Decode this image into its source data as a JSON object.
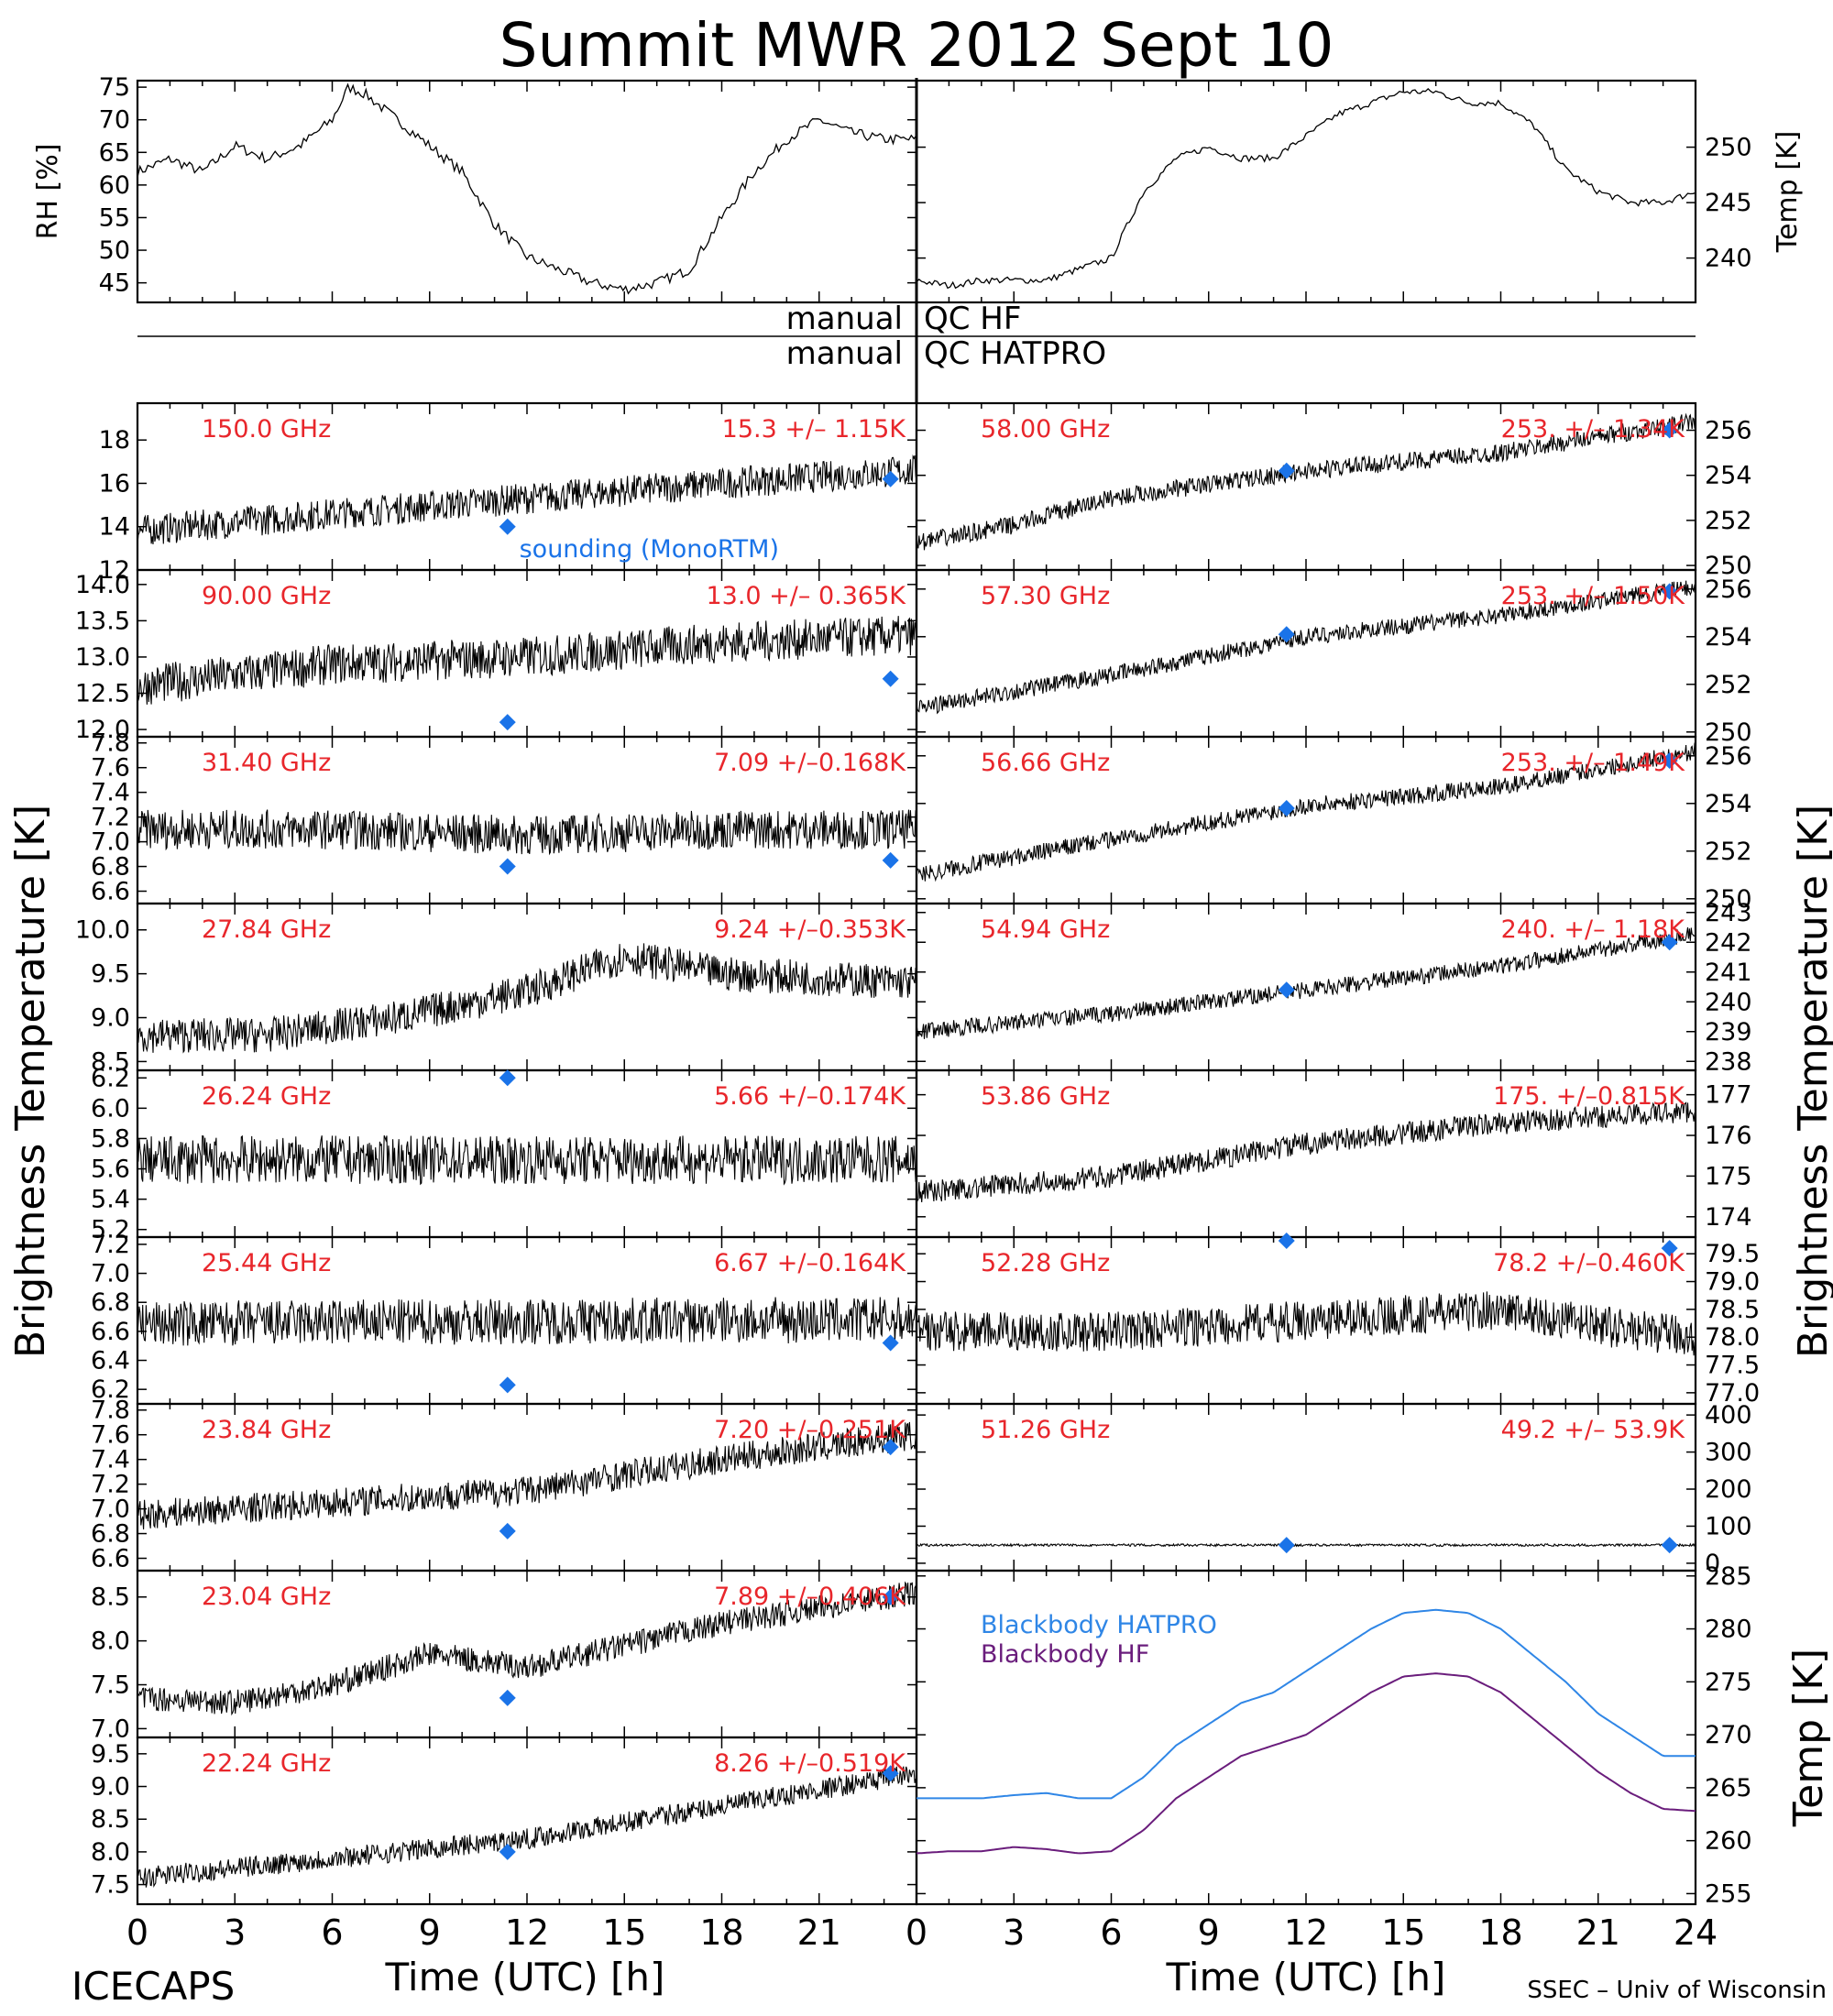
{
  "title": "Summit MWR 2012 Sept 10",
  "footer": {
    "left": "ICECAPS",
    "right": "SSEC – Univ of Wisconsin"
  },
  "qc": {
    "hf_left": "manual",
    "hf_right": "QC HF",
    "hat_left": "manual",
    "hat_right": "QC HATPRO"
  },
  "y_axis_label_left": "Brightness Temperature [K]",
  "y_axis_label_right": "Brightness Temperature [K]",
  "colors": {
    "series": "#000000",
    "sounding": "#1a73e8",
    "label": "#e8262b",
    "bb_hatpro": "#2f86e6",
    "bb_hf": "#6a1d7c"
  },
  "x_axis": {
    "label": "Time (UTC) [h]",
    "left_ticks": [
      "0",
      "3",
      "6",
      "9",
      "12",
      "15",
      "18",
      "21"
    ],
    "right_ticks": [
      "0",
      "3",
      "6",
      "9",
      "12",
      "15",
      "18",
      "21",
      "24"
    ],
    "range": [
      0,
      24
    ]
  },
  "chart_data": [
    {
      "type": "line",
      "id": "rh",
      "ylabel": "RH [%]",
      "ylim": [
        42,
        76
      ],
      "yticks": [
        "45",
        "50",
        "55",
        "60",
        "65",
        "70",
        "75"
      ],
      "xlim": [
        0,
        24
      ],
      "series": [
        {
          "x": [
            0,
            1,
            2,
            3,
            4,
            5,
            6,
            6.5,
            7,
            8,
            9,
            10,
            11,
            12,
            13,
            14,
            15,
            16,
            17,
            18,
            19,
            20,
            21,
            22,
            23,
            24
          ],
          "y": [
            62,
            64,
            62,
            66,
            64,
            66,
            70,
            75,
            74,
            70,
            66,
            62,
            54,
            49,
            47,
            45,
            44,
            45,
            47,
            55,
            62,
            67,
            70,
            68,
            67,
            67
          ]
        }
      ]
    },
    {
      "type": "line",
      "id": "temp",
      "ylabel": "Temp [K]",
      "ylim": [
        236,
        256
      ],
      "yticks": [
        "240",
        "245",
        "250"
      ],
      "xlim": [
        0,
        24
      ],
      "series": [
        {
          "x": [
            0,
            1,
            2,
            3,
            4,
            5,
            6,
            7,
            8,
            9,
            10,
            11,
            12,
            13,
            14,
            15,
            16,
            17,
            18,
            19,
            20,
            21,
            22,
            23,
            24
          ],
          "y": [
            238,
            237.5,
            238,
            238,
            238,
            239,
            240,
            246,
            249,
            250,
            249,
            249,
            251,
            253,
            254,
            255,
            255,
            254,
            254,
            252,
            248,
            246,
            245,
            245,
            246
          ]
        }
      ]
    },
    {
      "type": "scatter",
      "panel": "left",
      "row": 0,
      "freq": "150.0 GHz",
      "stat": "15.3 +/– 1.15K",
      "ylim": [
        12,
        19.7
      ],
      "yticks": [
        "12",
        "14",
        "16",
        "18"
      ],
      "trend": {
        "x": [
          0,
          6,
          12,
          18,
          24
        ],
        "y": [
          13.8,
          14.6,
          15.3,
          16,
          16.6
        ]
      },
      "noise": 0.9,
      "sounding_label": "sounding (MonoRTM)",
      "sounding": {
        "x": [
          11.4,
          23.2
        ],
        "y": [
          14,
          16.2
        ]
      }
    },
    {
      "type": "scatter",
      "panel": "left",
      "row": 1,
      "freq": "90.00 GHz",
      "stat": "13.0 +/– 0.365K",
      "ylim": [
        11.9,
        14.2
      ],
      "yticks": [
        "12.0",
        "12.5",
        "13.0",
        "13.5",
        "14.0"
      ],
      "trend": {
        "x": [
          0,
          6,
          12,
          18,
          24
        ],
        "y": [
          12.6,
          12.9,
          13.0,
          13.2,
          13.3
        ]
      },
      "noise": 0.35,
      "sounding": {
        "x": [
          11.4,
          23.2
        ],
        "y": [
          12.1,
          12.7
        ]
      }
    },
    {
      "type": "scatter",
      "panel": "left",
      "row": 2,
      "freq": "31.40 GHz",
      "stat": "7.09 +/–0.168K",
      "ylim": [
        6.5,
        7.85
      ],
      "yticks": [
        "6.6",
        "6.8",
        "7.0",
        "7.2",
        "7.4",
        "7.6",
        "7.8"
      ],
      "trend": {
        "x": [
          0,
          6,
          12,
          18,
          24
        ],
        "y": [
          7.1,
          7.1,
          7.05,
          7.1,
          7.1
        ]
      },
      "noise": 0.2,
      "sounding": {
        "x": [
          11.4,
          23.2
        ],
        "y": [
          6.8,
          6.85
        ]
      }
    },
    {
      "type": "scatter",
      "panel": "left",
      "row": 3,
      "freq": "27.84 GHz",
      "stat": "9.24 +/–0.353K",
      "ylim": [
        8.4,
        10.3
      ],
      "yticks": [
        "8.5",
        "9.0",
        "9.5",
        "10.0"
      ],
      "trend": {
        "x": [
          0,
          4,
          8,
          12,
          15,
          18,
          24
        ],
        "y": [
          8.8,
          8.8,
          9.0,
          9.3,
          9.7,
          9.5,
          9.4
        ]
      },
      "noise": 0.25,
      "sounding": {
        "x": [],
        "y": []
      }
    },
    {
      "type": "scatter",
      "panel": "left",
      "row": 4,
      "freq": "26.24 GHz",
      "stat": "5.66 +/–0.174K",
      "ylim": [
        5.15,
        6.25
      ],
      "yticks": [
        "5.2",
        "5.4",
        "5.6",
        "5.8",
        "6.0",
        "6.2"
      ],
      "trend": {
        "x": [
          0,
          12,
          24
        ],
        "y": [
          5.66,
          5.66,
          5.66
        ]
      },
      "noise": 0.2,
      "sounding": {
        "x": [
          11.4
        ],
        "y": [
          6.2
        ]
      }
    },
    {
      "type": "scatter",
      "panel": "left",
      "row": 5,
      "freq": "25.44 GHz",
      "stat": "6.67 +/–0.164K",
      "ylim": [
        6.1,
        7.25
      ],
      "yticks": [
        "6.2",
        "6.4",
        "6.6",
        "6.8",
        "7.0",
        "7.2"
      ],
      "trend": {
        "x": [
          0,
          12,
          24
        ],
        "y": [
          6.65,
          6.67,
          6.68
        ]
      },
      "noise": 0.2,
      "sounding": {
        "x": [
          11.4,
          23.2
        ],
        "y": [
          6.23,
          6.52
        ]
      }
    },
    {
      "type": "scatter",
      "panel": "left",
      "row": 6,
      "freq": "23.84 GHz",
      "stat": "7.20 +/–0.251K",
      "ylim": [
        6.5,
        7.85
      ],
      "yticks": [
        "6.6",
        "6.8",
        "7.0",
        "7.2",
        "7.4",
        "7.6",
        "7.8"
      ],
      "trend": {
        "x": [
          0,
          6,
          12,
          18,
          24
        ],
        "y": [
          6.95,
          7.05,
          7.15,
          7.4,
          7.6
        ]
      },
      "noise": 0.15,
      "sounding": {
        "x": [
          11.4,
          23.2
        ],
        "y": [
          6.82,
          7.5
        ]
      }
    },
    {
      "type": "scatter",
      "panel": "left",
      "row": 7,
      "freq": "23.04 GHz",
      "stat": "7.89 +/–0.406K",
      "ylim": [
        6.9,
        8.8
      ],
      "yticks": [
        "7.0",
        "7.5",
        "8.0",
        "8.5"
      ],
      "trend": {
        "x": [
          0,
          3,
          6,
          9,
          12,
          18,
          24
        ],
        "y": [
          7.35,
          7.3,
          7.5,
          7.85,
          7.7,
          8.2,
          8.55
        ]
      },
      "noise": 0.18,
      "sounding": {
        "x": [
          11.4,
          23.2
        ],
        "y": [
          7.35,
          8.5
        ]
      }
    },
    {
      "type": "scatter",
      "panel": "left",
      "row": 8,
      "freq": "22.24 GHz",
      "stat": "8.26 +/–0.519K",
      "ylim": [
        7.2,
        9.75
      ],
      "yticks": [
        "7.5",
        "8.0",
        "8.5",
        "9.0",
        "9.5"
      ],
      "trend": {
        "x": [
          0,
          6,
          12,
          18,
          24
        ],
        "y": [
          7.6,
          7.9,
          8.2,
          8.7,
          9.2
        ]
      },
      "noise": 0.2,
      "sounding": {
        "x": [
          11.4,
          23.2
        ],
        "y": [
          8.0,
          9.2
        ]
      }
    },
    {
      "type": "scatter",
      "panel": "right",
      "row": 0,
      "freq": "58.00 GHz",
      "stat": "253. +/– 1.34K",
      "ylim": [
        249.8,
        257.2
      ],
      "yticks": [
        "250",
        "252",
        "254",
        "256"
      ],
      "trend": {
        "x": [
          0,
          3,
          6,
          12,
          18,
          24
        ],
        "y": [
          251,
          251.8,
          253,
          254.2,
          255,
          256.4
        ]
      },
      "noise": 0.5,
      "sounding": {
        "x": [
          11.4,
          23.2
        ],
        "y": [
          254.2,
          256
        ]
      }
    },
    {
      "type": "scatter",
      "panel": "right",
      "row": 1,
      "freq": "57.30 GHz",
      "stat": "253. +/– 1.50K",
      "ylim": [
        249.8,
        256.8
      ],
      "yticks": [
        "250",
        "252",
        "254",
        "256"
      ],
      "trend": {
        "x": [
          0,
          6,
          12,
          18,
          24
        ],
        "y": [
          251,
          252.4,
          254,
          254.9,
          256.1
        ]
      },
      "noise": 0.45,
      "sounding": {
        "x": [
          11.4,
          23.2
        ],
        "y": [
          254.1,
          255.9
        ]
      }
    },
    {
      "type": "scatter",
      "panel": "right",
      "row": 2,
      "freq": "56.66 GHz",
      "stat": "253. +/– 1.49K",
      "ylim": [
        249.8,
        256.8
      ],
      "yticks": [
        "250",
        "252",
        "254",
        "256"
      ],
      "trend": {
        "x": [
          0,
          6,
          12,
          18,
          24
        ],
        "y": [
          251,
          252.5,
          253.9,
          254.7,
          256.2
        ]
      },
      "noise": 0.45,
      "sounding": {
        "x": [
          11.4,
          23.2
        ],
        "y": [
          253.8,
          255.8
        ]
      }
    },
    {
      "type": "scatter",
      "panel": "right",
      "row": 3,
      "freq": "54.94 GHz",
      "stat": "240. +/– 1.18K",
      "ylim": [
        237.7,
        243.3
      ],
      "yticks": [
        "238",
        "239",
        "240",
        "241",
        "242",
        "243"
      ],
      "trend": {
        "x": [
          0,
          6,
          12,
          18,
          24
        ],
        "y": [
          239,
          239.6,
          240.4,
          241.2,
          242.3
        ]
      },
      "noise": 0.35,
      "sounding": {
        "x": [
          11.4,
          23.2
        ],
        "y": [
          240.4,
          242
        ]
      }
    },
    {
      "type": "scatter",
      "panel": "right",
      "row": 4,
      "freq": "53.86 GHz",
      "stat": "175. +/–0.815K",
      "ylim": [
        173.5,
        177.6
      ],
      "yticks": [
        "174",
        "175",
        "176",
        "177"
      ],
      "trend": {
        "x": [
          0,
          6,
          12,
          18,
          24
        ],
        "y": [
          174.6,
          175,
          175.8,
          176.3,
          176.6
        ]
      },
      "noise": 0.35,
      "sounding": {
        "x": [],
        "y": []
      }
    },
    {
      "type": "scatter",
      "panel": "right",
      "row": 5,
      "freq": "52.28 GHz",
      "stat": "78.2 +/–0.460K",
      "ylim": [
        76.8,
        79.8
      ],
      "yticks": [
        "77.0",
        "77.5",
        "78.0",
        "78.5",
        "79.0",
        "79.5"
      ],
      "trend": {
        "x": [
          0,
          6,
          12,
          18,
          21,
          24
        ],
        "y": [
          78.1,
          78.1,
          78.3,
          78.5,
          78.2,
          78.0
        ]
      },
      "noise": 0.45,
      "sounding": {
        "x": [
          11.4,
          23.2
        ],
        "y": [
          79.8,
          79.6
        ]
      }
    },
    {
      "type": "scatter",
      "panel": "right",
      "row": 6,
      "freq": "51.26 GHz",
      "stat": "49.2 +/– 53.9K",
      "ylim": [
        -20,
        430
      ],
      "yticks": [
        "0",
        "100",
        "200",
        "300",
        "400"
      ],
      "trend": {
        "x": [
          0,
          24
        ],
        "y": [
          49,
          49
        ]
      },
      "noise": 4,
      "sounding": {
        "x": [
          11.4,
          23.2
        ],
        "y": [
          49,
          49
        ]
      }
    },
    {
      "type": "line",
      "panel": "right",
      "row": "7-8",
      "ylabel": "Temp [K]",
      "ylim": [
        254,
        285.5
      ],
      "yticks": [
        "255",
        "260",
        "265",
        "270",
        "275",
        "280",
        "285"
      ],
      "series": [
        {
          "name": "Blackbody HATPRO",
          "x": [
            0,
            1,
            2,
            3,
            4,
            5,
            6,
            7,
            8,
            9,
            10,
            11,
            12,
            13,
            14,
            15,
            16,
            17,
            18,
            19,
            20,
            21,
            22,
            23,
            24
          ],
          "y": [
            264,
            264,
            264,
            264.3,
            264.5,
            264,
            264,
            266,
            269,
            271,
            273,
            274,
            276,
            278,
            280,
            281.5,
            281.8,
            281.5,
            280,
            277.5,
            275,
            272,
            270,
            268,
            268
          ]
        },
        {
          "name": "Blackbody HF",
          "x": [
            0,
            1,
            2,
            3,
            4,
            5,
            6,
            7,
            8,
            9,
            10,
            11,
            12,
            13,
            14,
            15,
            16,
            17,
            18,
            19,
            20,
            21,
            22,
            23,
            24
          ],
          "y": [
            258.8,
            259,
            259,
            259.4,
            259.2,
            258.8,
            259,
            261,
            264,
            266,
            268,
            269,
            270,
            272,
            274,
            275.5,
            275.8,
            275.5,
            274,
            271.5,
            269,
            266.5,
            264.5,
            263,
            262.8
          ]
        }
      ]
    }
  ]
}
